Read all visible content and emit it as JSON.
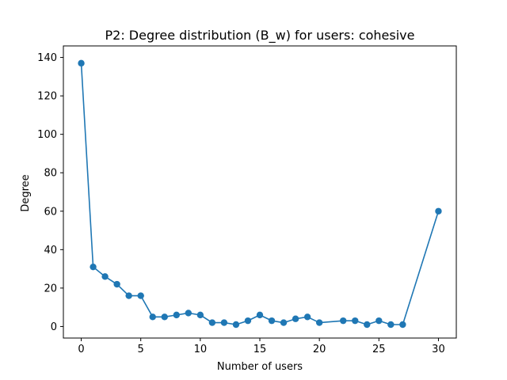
{
  "chart_data": {
    "type": "line",
    "title": "P2: Degree distribution (B_w) for users: cohesive",
    "xlabel": "Number of users",
    "ylabel": "Degree",
    "xlim": [
      -1.5,
      31.5
    ],
    "ylim": [
      -6,
      146
    ],
    "xticks": [
      0,
      5,
      10,
      15,
      20,
      25,
      30
    ],
    "yticks": [
      0,
      20,
      40,
      60,
      80,
      100,
      120,
      140
    ],
    "grid": false,
    "series": [
      {
        "color": "#1f77b4",
        "marker": "circle",
        "x": [
          0,
          1,
          2,
          3,
          4,
          5,
          6,
          7,
          8,
          9,
          10,
          11,
          12,
          13,
          14,
          15,
          16,
          17,
          18,
          19,
          20,
          22,
          23,
          24,
          25,
          26,
          27,
          30
        ],
        "y": [
          137,
          31,
          26,
          22,
          16,
          16,
          5,
          5,
          6,
          7,
          6,
          2,
          2,
          1,
          3,
          6,
          3,
          2,
          4,
          5,
          2,
          3,
          3,
          1,
          3,
          1,
          1,
          60
        ]
      }
    ]
  }
}
